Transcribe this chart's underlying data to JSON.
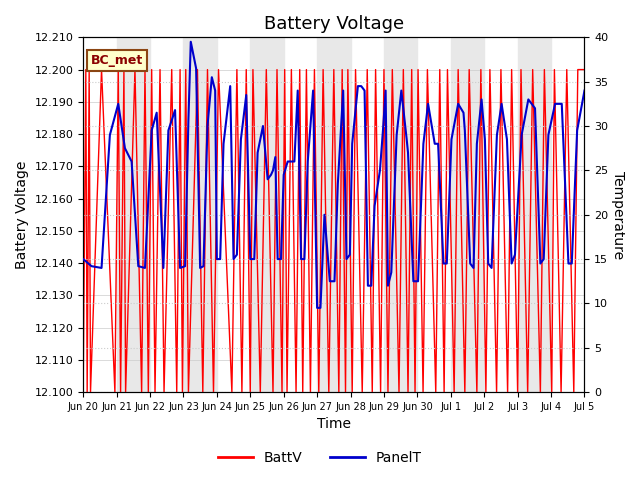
{
  "title": "Battery Voltage",
  "xlabel": "Time",
  "ylabel_left": "Battery Voltage",
  "ylabel_right": "Temperature",
  "ylim_left": [
    12.1,
    12.21
  ],
  "ylim_right": [
    0,
    40
  ],
  "yticks_left": [
    12.1,
    12.11,
    12.12,
    12.13,
    12.14,
    12.15,
    12.16,
    12.17,
    12.18,
    12.19,
    12.2,
    12.21
  ],
  "yticks_right": [
    0,
    5,
    10,
    15,
    20,
    25,
    30,
    35,
    40
  ],
  "annotation_text": "BC_met",
  "legend_labels": [
    "BattV",
    "PanelT"
  ],
  "batt_color": "#FF0000",
  "panel_color": "#0000CC",
  "background_color": "#FFFFFF",
  "band_color": "#E8E8E8",
  "title_fontsize": 13,
  "axis_fontsize": 10,
  "tick_fontsize": 8,
  "batt_data": [
    [
      0.0,
      12.1
    ],
    [
      0.08,
      12.2
    ],
    [
      0.12,
      12.1
    ],
    [
      0.18,
      12.2
    ],
    [
      0.22,
      12.1
    ],
    [
      0.55,
      12.2
    ],
    [
      0.95,
      12.1
    ],
    [
      1.05,
      12.2
    ],
    [
      1.12,
      12.1
    ],
    [
      1.22,
      12.2
    ],
    [
      1.27,
      12.1
    ],
    [
      1.55,
      12.2
    ],
    [
      1.75,
      12.1
    ],
    [
      1.85,
      12.2
    ],
    [
      1.95,
      12.1
    ],
    [
      2.05,
      12.2
    ],
    [
      2.15,
      12.1
    ],
    [
      2.3,
      12.2
    ],
    [
      2.42,
      12.1
    ],
    [
      2.65,
      12.2
    ],
    [
      2.8,
      12.1
    ],
    [
      2.9,
      12.2
    ],
    [
      2.97,
      12.1
    ],
    [
      3.07,
      12.2
    ],
    [
      3.15,
      12.1
    ],
    [
      3.42,
      12.2
    ],
    [
      3.58,
      12.1
    ],
    [
      3.72,
      12.2
    ],
    [
      3.9,
      12.1
    ],
    [
      4.05,
      12.2
    ],
    [
      4.45,
      12.1
    ],
    [
      4.6,
      12.2
    ],
    [
      4.75,
      12.1
    ],
    [
      4.88,
      12.2
    ],
    [
      5.0,
      12.1
    ],
    [
      5.08,
      12.2
    ],
    [
      5.3,
      12.1
    ],
    [
      5.48,
      12.2
    ],
    [
      5.68,
      12.1
    ],
    [
      5.8,
      12.2
    ],
    [
      5.95,
      12.1
    ],
    [
      6.03,
      12.2
    ],
    [
      6.1,
      12.1
    ],
    [
      6.23,
      12.2
    ],
    [
      6.37,
      12.1
    ],
    [
      6.48,
      12.2
    ],
    [
      6.57,
      12.1
    ],
    [
      6.68,
      12.2
    ],
    [
      6.8,
      12.1
    ],
    [
      6.92,
      12.2
    ],
    [
      7.05,
      12.1
    ],
    [
      7.18,
      12.2
    ],
    [
      7.35,
      12.1
    ],
    [
      7.5,
      12.2
    ],
    [
      7.65,
      12.1
    ],
    [
      7.75,
      12.2
    ],
    [
      7.85,
      12.1
    ],
    [
      7.92,
      12.2
    ],
    [
      8.05,
      12.1
    ],
    [
      8.15,
      12.2
    ],
    [
      8.35,
      12.1
    ],
    [
      8.5,
      12.2
    ],
    [
      8.65,
      12.1
    ],
    [
      8.75,
      12.2
    ],
    [
      8.9,
      12.1
    ],
    [
      9.0,
      12.2
    ],
    [
      9.12,
      12.1
    ],
    [
      9.25,
      12.2
    ],
    [
      9.45,
      12.1
    ],
    [
      9.58,
      12.2
    ],
    [
      9.72,
      12.1
    ],
    [
      9.83,
      12.2
    ],
    [
      9.93,
      12.1
    ],
    [
      10.02,
      12.2
    ],
    [
      10.17,
      12.1
    ],
    [
      10.3,
      12.2
    ],
    [
      10.55,
      12.1
    ],
    [
      10.67,
      12.2
    ],
    [
      10.8,
      12.1
    ],
    [
      10.9,
      12.2
    ],
    [
      11.1,
      12.1
    ],
    [
      11.22,
      12.2
    ],
    [
      11.42,
      12.1
    ],
    [
      11.55,
      12.2
    ],
    [
      11.78,
      12.1
    ],
    [
      11.9,
      12.2
    ],
    [
      12.05,
      12.1
    ],
    [
      12.17,
      12.2
    ],
    [
      12.37,
      12.1
    ],
    [
      12.5,
      12.2
    ],
    [
      12.7,
      12.1
    ],
    [
      12.82,
      12.2
    ],
    [
      13.0,
      12.1
    ],
    [
      13.1,
      12.2
    ],
    [
      13.3,
      12.1
    ],
    [
      13.45,
      12.2
    ],
    [
      13.68,
      12.1
    ],
    [
      13.8,
      12.2
    ],
    [
      14.02,
      12.1
    ],
    [
      14.1,
      12.2
    ],
    [
      14.3,
      12.1
    ],
    [
      14.47,
      12.2
    ],
    [
      14.68,
      12.1
    ],
    [
      14.8,
      12.2
    ],
    [
      15.0,
      12.2
    ]
  ],
  "panel_data": [
    [
      0.0,
      15.0
    ],
    [
      0.25,
      14.2
    ],
    [
      0.55,
      14.0
    ],
    [
      0.8,
      29.0
    ],
    [
      1.05,
      32.5
    ],
    [
      1.25,
      27.5
    ],
    [
      1.45,
      26.0
    ],
    [
      1.65,
      14.2
    ],
    [
      1.85,
      14.0
    ],
    [
      2.05,
      29.5
    ],
    [
      2.2,
      31.5
    ],
    [
      2.4,
      14.0
    ],
    [
      2.55,
      29.5
    ],
    [
      2.75,
      31.8
    ],
    [
      2.9,
      14.0
    ],
    [
      3.05,
      14.2
    ],
    [
      3.15,
      30.8
    ],
    [
      3.22,
      39.5
    ],
    [
      3.38,
      36.5
    ],
    [
      3.5,
      14.0
    ],
    [
      3.6,
      14.2
    ],
    [
      3.72,
      30.0
    ],
    [
      3.85,
      35.5
    ],
    [
      3.95,
      34.0
    ],
    [
      4.0,
      15.0
    ],
    [
      4.1,
      15.0
    ],
    [
      4.2,
      28.0
    ],
    [
      4.4,
      34.5
    ],
    [
      4.5,
      15.0
    ],
    [
      4.6,
      15.5
    ],
    [
      4.72,
      28.5
    ],
    [
      4.88,
      33.5
    ],
    [
      5.0,
      15.0
    ],
    [
      5.12,
      15.0
    ],
    [
      5.22,
      27.0
    ],
    [
      5.38,
      30.0
    ],
    [
      5.52,
      24.0
    ],
    [
      5.62,
      24.5
    ],
    [
      5.68,
      25.0
    ],
    [
      5.75,
      26.5
    ],
    [
      5.82,
      15.0
    ],
    [
      5.92,
      15.0
    ],
    [
      6.0,
      24.5
    ],
    [
      6.12,
      26.0
    ],
    [
      6.32,
      26.0
    ],
    [
      6.42,
      34.0
    ],
    [
      6.52,
      15.0
    ],
    [
      6.62,
      15.0
    ],
    [
      6.72,
      26.0
    ],
    [
      6.88,
      34.0
    ],
    [
      7.0,
      9.5
    ],
    [
      7.1,
      9.5
    ],
    [
      7.22,
      20.0
    ],
    [
      7.38,
      12.5
    ],
    [
      7.52,
      12.5
    ],
    [
      7.62,
      23.5
    ],
    [
      7.78,
      34.0
    ],
    [
      7.88,
      15.0
    ],
    [
      7.98,
      15.5
    ],
    [
      8.05,
      28.0
    ],
    [
      8.22,
      34.5
    ],
    [
      8.32,
      34.5
    ],
    [
      8.42,
      34.0
    ],
    [
      8.52,
      12.0
    ],
    [
      8.62,
      12.0
    ],
    [
      8.72,
      21.0
    ],
    [
      8.88,
      25.0
    ],
    [
      8.98,
      30.0
    ],
    [
      9.05,
      34.0
    ],
    [
      9.12,
      12.0
    ],
    [
      9.22,
      13.5
    ],
    [
      9.38,
      29.0
    ],
    [
      9.52,
      34.0
    ],
    [
      9.68,
      28.5
    ],
    [
      9.72,
      27.0
    ],
    [
      9.88,
      12.5
    ],
    [
      10.02,
      12.5
    ],
    [
      10.18,
      28.0
    ],
    [
      10.32,
      32.5
    ],
    [
      10.52,
      28.0
    ],
    [
      10.62,
      28.0
    ],
    [
      10.78,
      14.5
    ],
    [
      10.88,
      14.5
    ],
    [
      11.02,
      28.5
    ],
    [
      11.22,
      32.5
    ],
    [
      11.38,
      31.5
    ],
    [
      11.42,
      29.5
    ],
    [
      11.58,
      14.5
    ],
    [
      11.68,
      14.0
    ],
    [
      11.78,
      28.0
    ],
    [
      11.92,
      33.0
    ],
    [
      12.02,
      28.5
    ],
    [
      12.12,
      14.5
    ],
    [
      12.22,
      14.0
    ],
    [
      12.38,
      29.0
    ],
    [
      12.52,
      32.5
    ],
    [
      12.68,
      28.5
    ],
    [
      12.82,
      14.5
    ],
    [
      12.92,
      15.5
    ],
    [
      13.12,
      29.0
    ],
    [
      13.32,
      33.0
    ],
    [
      13.52,
      32.0
    ],
    [
      13.68,
      14.5
    ],
    [
      13.78,
      15.0
    ],
    [
      13.92,
      29.0
    ],
    [
      14.12,
      32.5
    ],
    [
      14.32,
      32.5
    ],
    [
      14.52,
      14.5
    ],
    [
      14.62,
      14.5
    ],
    [
      14.78,
      29.5
    ],
    [
      15.0,
      34.0
    ]
  ],
  "xmin": 0,
  "xmax": 15,
  "xtick_positions": [
    0,
    1,
    2,
    3,
    4,
    5,
    6,
    7,
    8,
    9,
    10,
    11,
    12,
    13,
    14,
    15
  ],
  "xtick_labels": [
    "Jun 20",
    "Jun 21",
    "Jun 22",
    "Jun 23",
    "Jun 24",
    "Jun 25",
    "Jun 26",
    "Jun 27",
    "Jun 28",
    "Jun 29",
    "Jun 30",
    "Jul 1",
    "Jul 2",
    "Jul 3",
    "Jul 4",
    "Jul 5"
  ],
  "band_positions": [
    1,
    3,
    5,
    7,
    9,
    11,
    13
  ],
  "grid_color": "#CCCCCC"
}
